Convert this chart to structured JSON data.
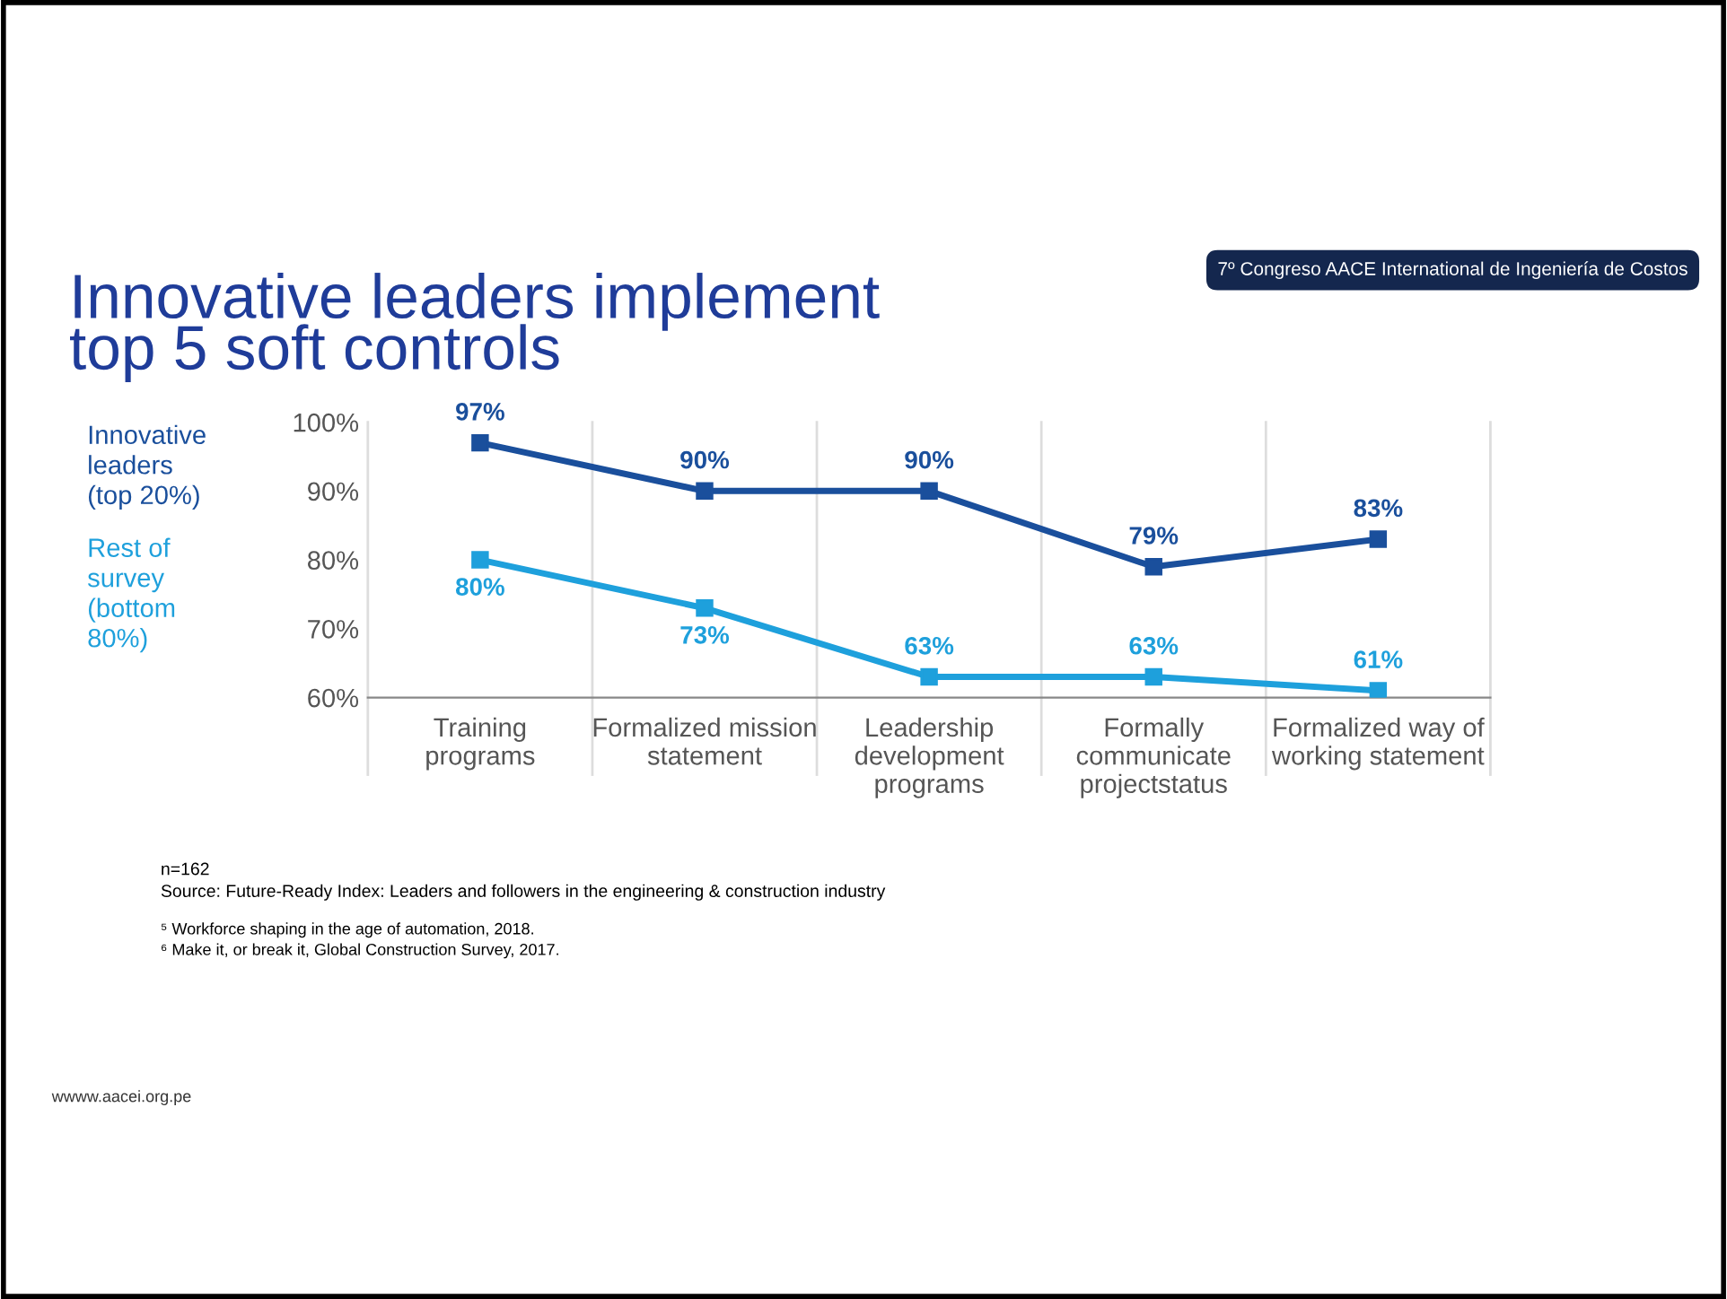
{
  "chart_data": {
    "type": "line",
    "title": "Innovative leaders implement\ntop 5 soft controls",
    "categories": [
      "Training\nprograms",
      "Formalized mission\nstatement",
      "Leadership\ndevelopment\nprograms",
      "Formally\ncommunicate\nprojectstatus",
      "Formalized way of\nworking statement"
    ],
    "series": [
      {
        "name": "Innovative\nleaders\n(top 20%)",
        "color": "#1a4f9c",
        "values": [
          97,
          90,
          90,
          79,
          83
        ]
      },
      {
        "name": "Rest of\nsurvey\n(bottom\n80%)",
        "color": "#1ea0dc",
        "values": [
          80,
          73,
          63,
          63,
          61
        ]
      }
    ],
    "ylim": [
      60,
      100
    ],
    "yticks": [
      {
        "value": 60,
        "label": "60%"
      },
      {
        "value": 70,
        "label": "70%"
      },
      {
        "value": 80,
        "label": "80%"
      },
      {
        "value": 90,
        "label": "90%"
      },
      {
        "value": 100,
        "label": "100%"
      }
    ],
    "value_labels": [
      [
        "97%",
        "90%",
        "90%",
        "79%",
        "83%"
      ],
      [
        "80%",
        "73%",
        "63%",
        "63%",
        "61%"
      ]
    ],
    "marker": "square",
    "line_style": "solid",
    "grid": "x",
    "legend": "left",
    "annotations": [
      "7º Congreso AACE International de Ingeniería de Costos",
      "n=162",
      "Source: Future-Ready Index: Leaders and followers in the engineering & construction industry",
      "⁵ Workforce shaping in the age of automation, 2018.",
      "⁶ Make it, or break it, Global Construction Survey, 2017.",
      "wwww.aacei.org.pe"
    ]
  }
}
